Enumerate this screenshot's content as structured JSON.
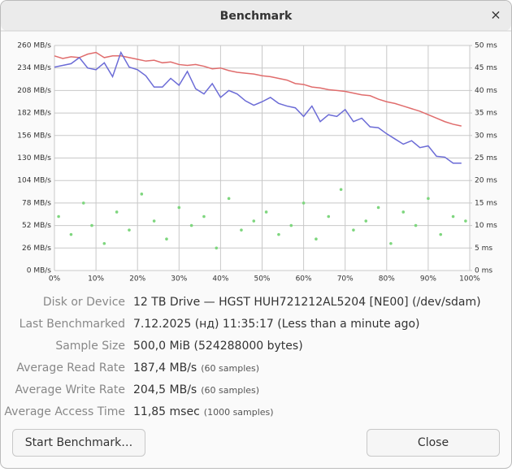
{
  "window": {
    "title": "Benchmark",
    "close_icon": "×"
  },
  "chart_data": {
    "type": "line",
    "x": [
      0,
      2,
      4,
      6,
      8,
      10,
      12,
      14,
      16,
      18,
      20,
      22,
      24,
      26,
      28,
      30,
      32,
      34,
      36,
      38,
      40,
      42,
      44,
      46,
      48,
      50,
      52,
      54,
      56,
      58,
      60,
      62,
      64,
      66,
      68,
      70,
      72,
      74,
      76,
      78,
      80,
      82,
      84,
      86,
      88,
      90,
      92,
      94,
      96,
      98
    ],
    "series": [
      {
        "color": "#e06c6c",
        "values": [
          248,
          245,
          247,
          246,
          250,
          252,
          246,
          248,
          248,
          246,
          244,
          242,
          243,
          240,
          241,
          238,
          237,
          238,
          236,
          233,
          234,
          231,
          229,
          228,
          227,
          225,
          224,
          222,
          220,
          216,
          215,
          212,
          211,
          209,
          208,
          207,
          205,
          203,
          202,
          198,
          195,
          193,
          190,
          187,
          184,
          180,
          176,
          172,
          169,
          167
        ]
      },
      {
        "color": "#6b6bd6",
        "values": [
          235,
          237,
          239,
          246,
          234,
          232,
          240,
          224,
          252,
          235,
          232,
          225,
          212,
          212,
          222,
          214,
          230,
          210,
          204,
          216,
          200,
          208,
          204,
          196,
          191,
          195,
          200,
          193,
          190,
          188,
          178,
          190,
          172,
          180,
          178,
          186,
          172,
          176,
          166,
          165,
          158,
          152,
          146,
          150,
          142,
          144,
          132,
          131,
          124,
          124
        ]
      }
    ],
    "scatter": {
      "color": "#7ed67e",
      "axis": "y2",
      "x": [
        1,
        4,
        7,
        9,
        12,
        15,
        18,
        21,
        24,
        27,
        30,
        33,
        36,
        39,
        42,
        45,
        48,
        51,
        54,
        57,
        60,
        63,
        66,
        69,
        72,
        75,
        78,
        81,
        84,
        87,
        90,
        93,
        96,
        99
      ],
      "y": [
        12,
        8,
        15,
        10,
        6,
        13,
        9,
        17,
        11,
        7,
        14,
        10,
        12,
        5,
        16,
        9,
        11,
        13,
        8,
        10,
        15,
        7,
        12,
        18,
        9,
        11,
        14,
        6,
        13,
        10,
        16,
        8,
        12,
        11
      ]
    },
    "xlim": [
      0,
      100
    ],
    "xticks": [
      {
        "value": 0,
        "label": "0%"
      },
      {
        "value": 10,
        "label": "10%"
      },
      {
        "value": 20,
        "label": "20%"
      },
      {
        "value": 30,
        "label": "30%"
      },
      {
        "value": 40,
        "label": "40%"
      },
      {
        "value": 50,
        "label": "50%"
      },
      {
        "value": 60,
        "label": "60%"
      },
      {
        "value": 70,
        "label": "70%"
      },
      {
        "value": 80,
        "label": "80%"
      },
      {
        "value": 90,
        "label": "90%"
      },
      {
        "value": 100,
        "label": "100%"
      }
    ],
    "ylim": [
      0,
      260
    ],
    "yticks": [
      {
        "value": 0,
        "label": "0 MB/s"
      },
      {
        "value": 26,
        "label": "26 MB/s"
      },
      {
        "value": 52,
        "label": "52 MB/s"
      },
      {
        "value": 78,
        "label": "78 MB/s"
      },
      {
        "value": 104,
        "label": "104 MB/s"
      },
      {
        "value": 130,
        "label": "130 MB/s"
      },
      {
        "value": 156,
        "label": "156 MB/s"
      },
      {
        "value": 182,
        "label": "182 MB/s"
      },
      {
        "value": 208,
        "label": "208 MB/s"
      },
      {
        "value": 234,
        "label": "234 MB/s"
      },
      {
        "value": 260,
        "label": "260 MB/s"
      }
    ],
    "y2lim": [
      0,
      50
    ],
    "y2ticks": [
      {
        "value": 0,
        "label": "0 ms"
      },
      {
        "value": 5,
        "label": "5 ms"
      },
      {
        "value": 10,
        "label": "10 ms"
      },
      {
        "value": 15,
        "label": "15 ms"
      },
      {
        "value": 20,
        "label": "20 ms"
      },
      {
        "value": 25,
        "label": "25 ms"
      },
      {
        "value": 30,
        "label": "30 ms"
      },
      {
        "value": 35,
        "label": "35 ms"
      },
      {
        "value": 40,
        "label": "40 ms"
      },
      {
        "value": 45,
        "label": "45 ms"
      },
      {
        "value": 50,
        "label": "50 ms"
      }
    ],
    "grid": true
  },
  "info": {
    "rows": [
      {
        "label": "Disk or Device",
        "value": "12 TB Drive — HGST HUH721212AL5204 [NE00] (/dev/sdam)"
      },
      {
        "label": "Last Benchmarked",
        "value": "7.12.2025 (нд) 11:35:17 (Less than a minute ago)"
      },
      {
        "label": "Sample Size",
        "value": "500,0 MiB (524288000 bytes)"
      },
      {
        "label": "Average Read Rate",
        "value": "187,4 MB/s",
        "note": "(60 samples)"
      },
      {
        "label": "Average Write Rate",
        "value": "204,5 MB/s",
        "note": "(60 samples)"
      },
      {
        "label": "Average Access Time",
        "value": "11,85 msec",
        "note": "(1000 samples)"
      }
    ]
  },
  "buttons": {
    "start": "Start Benchmark…",
    "close": "Close"
  }
}
